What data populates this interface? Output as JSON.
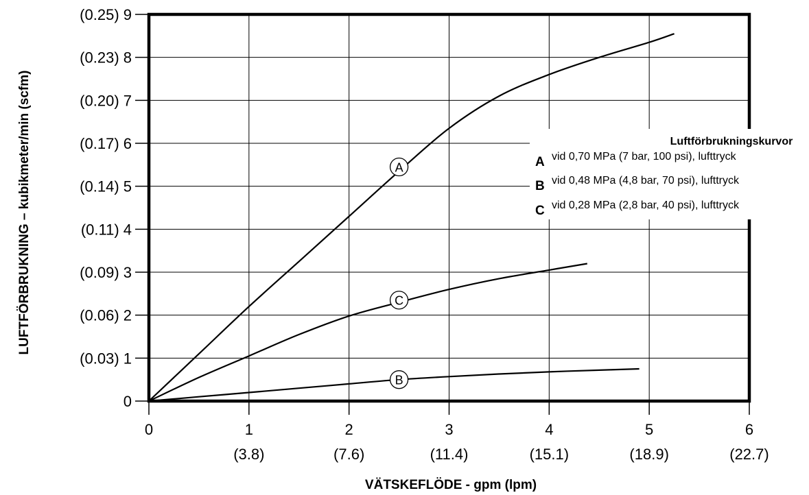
{
  "chart_data": {
    "type": "line",
    "xlabel": "VÄTSKEFLÖDE - gpm (lpm)",
    "ylabel": "LUFTFÖRBRUKNING – kubikmeter/min (scfm)",
    "xlim": [
      0,
      6
    ],
    "ylim": [
      0,
      9
    ],
    "grid": true,
    "x_ticks": [
      {
        "value": 0,
        "label": "0",
        "sublabel": ""
      },
      {
        "value": 1,
        "label": "1",
        "sublabel": "(3.8)"
      },
      {
        "value": 2,
        "label": "2",
        "sublabel": "(7.6)"
      },
      {
        "value": 3,
        "label": "3",
        "sublabel": "(11.4)"
      },
      {
        "value": 4,
        "label": "4",
        "sublabel": "(15.1)"
      },
      {
        "value": 5,
        "label": "5",
        "sublabel": "(18.9)"
      },
      {
        "value": 6,
        "label": "6",
        "sublabel": "(22.7)"
      }
    ],
    "y_ticks": [
      {
        "value": 0,
        "label": "0"
      },
      {
        "value": 1,
        "label": "(0.03) 1"
      },
      {
        "value": 2,
        "label": "(0.06) 2"
      },
      {
        "value": 3,
        "label": "(0.09) 3"
      },
      {
        "value": 4,
        "label": "(0.11) 4"
      },
      {
        "value": 5,
        "label": "(0.14) 5"
      },
      {
        "value": 6,
        "label": "(0.17) 6"
      },
      {
        "value": 7,
        "label": "(0.20) 7"
      },
      {
        "value": 8,
        "label": "(0.23) 8"
      },
      {
        "value": 9,
        "label": "(0.25) 9"
      }
    ],
    "series": [
      {
        "name": "A",
        "label_at": [
          2.5,
          5.45
        ],
        "x": [
          0,
          0.5,
          1,
          1.5,
          2,
          2.5,
          3,
          3.5,
          4,
          4.5,
          5,
          5.25
        ],
        "y": [
          0,
          1.1,
          2.2,
          3.25,
          4.3,
          5.35,
          6.35,
          7.1,
          7.6,
          8.0,
          8.35,
          8.55
        ]
      },
      {
        "name": "B",
        "label_at": [
          2.5,
          0.5
        ],
        "x": [
          0,
          0.5,
          1,
          1.5,
          2,
          2.5,
          3,
          3.5,
          4,
          4.5,
          4.9
        ],
        "y": [
          0,
          0.1,
          0.2,
          0.3,
          0.4,
          0.5,
          0.57,
          0.63,
          0.68,
          0.72,
          0.75
        ]
      },
      {
        "name": "C",
        "label_at": [
          2.5,
          2.35
        ],
        "x": [
          0,
          0.5,
          1,
          1.5,
          2,
          2.5,
          3,
          3.5,
          4,
          4.38
        ],
        "y": [
          0,
          0.55,
          1.05,
          1.55,
          1.98,
          2.3,
          2.6,
          2.85,
          3.05,
          3.2
        ]
      }
    ],
    "legend": {
      "placement": "right",
      "title": "Luftförbrukningskurvor",
      "entries": [
        {
          "key": "A",
          "text": "vid 0,70 MPa (7 bar, 100 psi), lufttryck"
        },
        {
          "key": "B",
          "text": "vid 0,48 MPa (4,8 bar, 70 psi), lufttryck"
        },
        {
          "key": "C",
          "text": "vid 0,28 MPa (2,8 bar, 40 psi), lufttryck"
        }
      ]
    }
  }
}
